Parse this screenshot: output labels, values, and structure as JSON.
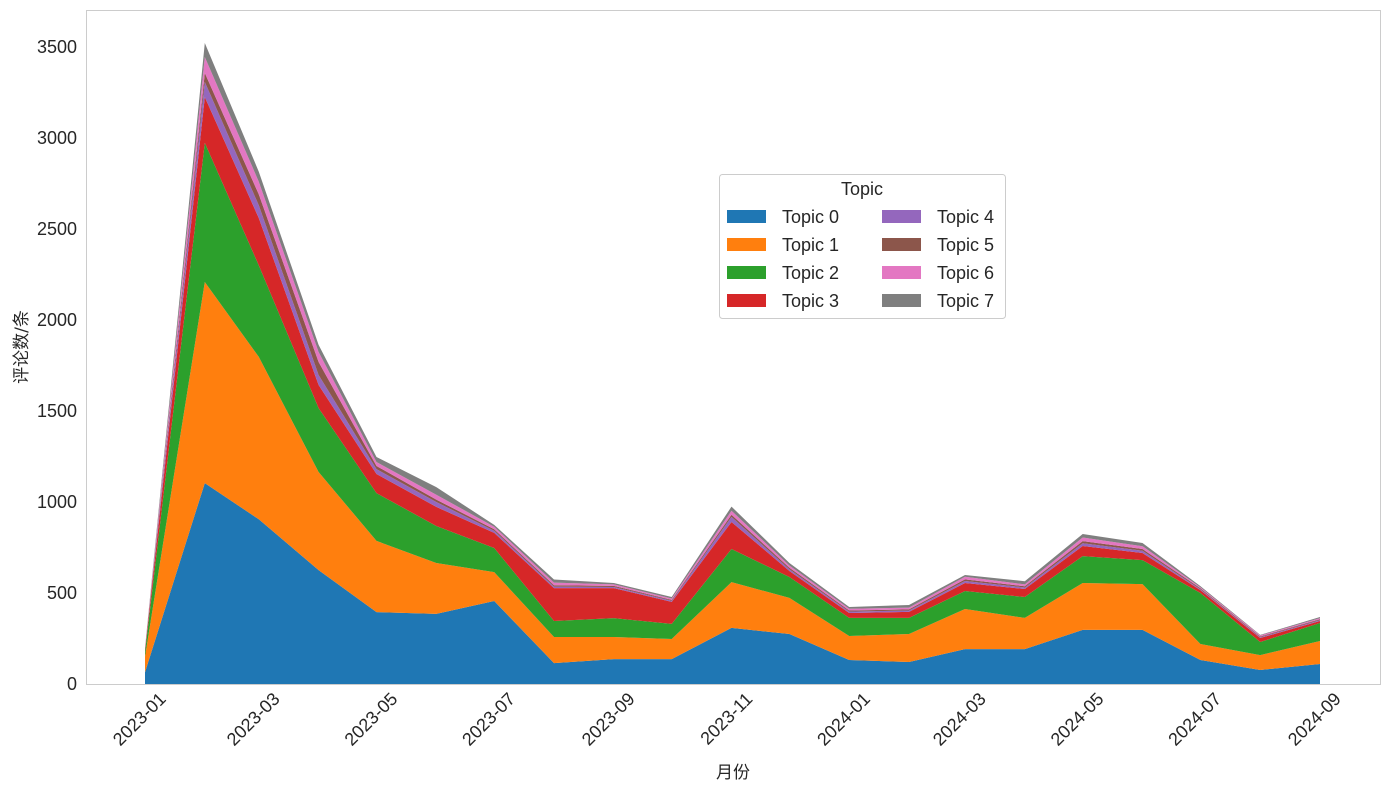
{
  "chart_data": {
    "type": "area",
    "stacked": true,
    "title": "",
    "xlabel": "月份",
    "ylabel": "评论数/条",
    "ylim": [
      0,
      3700
    ],
    "y_ticks": [
      0,
      500,
      1000,
      1500,
      2000,
      2500,
      3000,
      3500
    ],
    "x_ticks": [
      "2023-01",
      "2023-03",
      "2023-05",
      "2023-07",
      "2023-09",
      "2023-11",
      "2024-01",
      "2024-03",
      "2024-05",
      "2024-07",
      "2024-09"
    ],
    "grid": false,
    "x": [
      "2023-01",
      "2023-02",
      "2023-03",
      "2023-04",
      "2023-05",
      "2023-06",
      "2023-07",
      "2023-08",
      "2023-09",
      "2023-10",
      "2023-11",
      "2023-12",
      "2024-01",
      "2024-02",
      "2024-03",
      "2024-04",
      "2024-05",
      "2024-06",
      "2024-07",
      "2024-08",
      "2024-09"
    ],
    "legend": {
      "title": "Topic",
      "placement": "center-right",
      "columns": 2
    },
    "series": [
      {
        "name": "Topic 0",
        "color": "#1f77b4",
        "values": [
          65,
          1104,
          905,
          626,
          395,
          385,
          456,
          115,
          137,
          137,
          308,
          275,
          132,
          121,
          192,
          192,
          297,
          297,
          132,
          77,
          110
        ]
      },
      {
        "name": "Topic 1",
        "color": "#ff7f0e",
        "values": [
          85,
          1105,
          892,
          539,
          391,
          280,
          159,
          143,
          121,
          110,
          252,
          198,
          132,
          154,
          220,
          171,
          258,
          252,
          88,
          82,
          126
        ]
      },
      {
        "name": "Topic 2",
        "color": "#2ca02c",
        "values": [
          25,
          764,
          503,
          351,
          263,
          203,
          132,
          88,
          104,
          83,
          182,
          115,
          99,
          88,
          99,
          115,
          148,
          132,
          280,
          72,
          99
        ]
      },
      {
        "name": "Topic 3",
        "color": "#d62728",
        "values": [
          10,
          252,
          260,
          127,
          105,
          105,
          83,
          181,
          165,
          121,
          148,
          33,
          27,
          33,
          44,
          44,
          55,
          39,
          16,
          22,
          11
        ]
      },
      {
        "name": "Topic 4",
        "color": "#9467bd",
        "values": [
          3,
          83,
          70,
          55,
          27,
          27,
          12,
          8,
          6,
          6,
          28,
          10,
          8,
          8,
          11,
          8,
          15,
          12,
          5,
          4,
          5
        ]
      },
      {
        "name": "Topic 5",
        "color": "#8c564b",
        "values": [
          3,
          49,
          60,
          71,
          17,
          13,
          8,
          8,
          6,
          5,
          12,
          8,
          6,
          6,
          9,
          7,
          12,
          10,
          5,
          4,
          5
        ]
      },
      {
        "name": "Topic 6",
        "color": "#e377c2",
        "values": [
          3,
          88,
          70,
          55,
          22,
          27,
          14,
          14,
          8,
          8,
          22,
          12,
          10,
          10,
          14,
          10,
          20,
          15,
          6,
          6,
          6
        ]
      },
      {
        "name": "Topic 7",
        "color": "#7f7f7f",
        "values": [
          3,
          77,
          55,
          39,
          27,
          42,
          10,
          17,
          8,
          8,
          23,
          14,
          9,
          14,
          10,
          18,
          19,
          18,
          6,
          3,
          6
        ]
      }
    ]
  }
}
